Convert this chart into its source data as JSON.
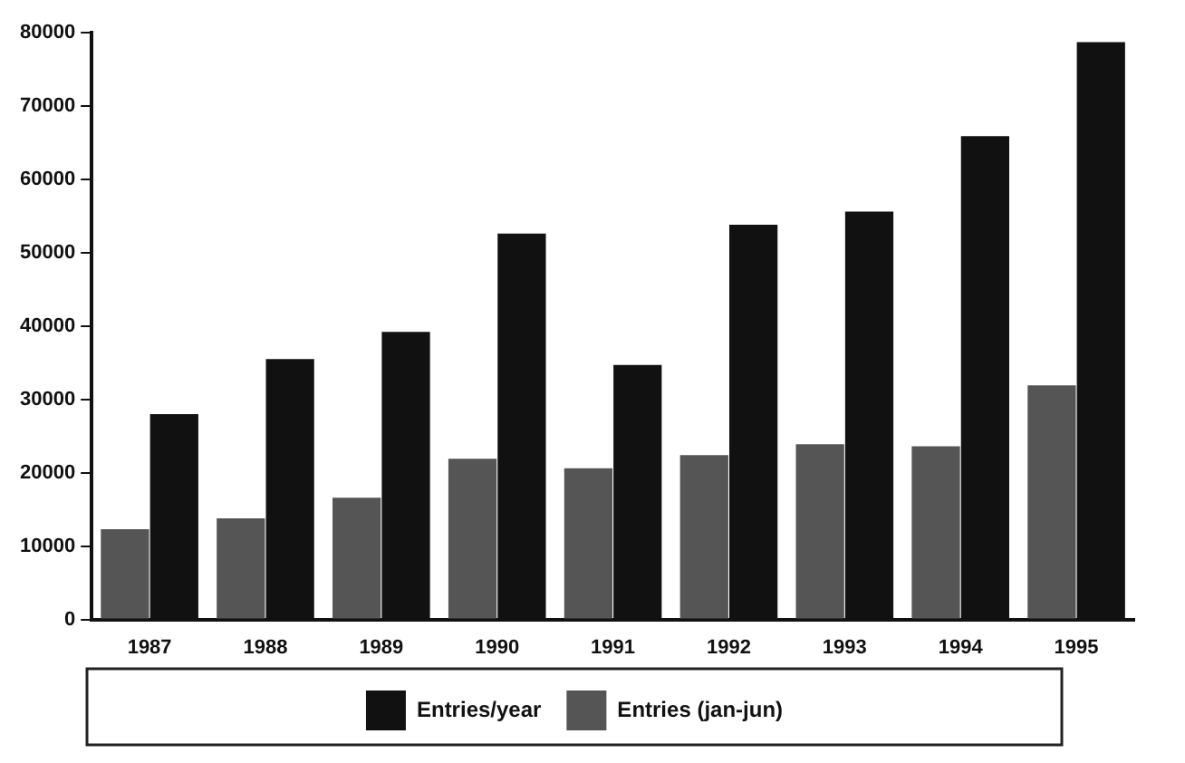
{
  "chart_data": {
    "type": "bar",
    "categories": [
      "1987",
      "1988",
      "1989",
      "1990",
      "1991",
      "1992",
      "1993",
      "1994",
      "1995"
    ],
    "series": [
      {
        "name": "Entries (jan-jun)",
        "color": "#555555",
        "values": [
          12300,
          13800,
          16600,
          21900,
          20600,
          22400,
          23900,
          23600,
          31900
        ]
      },
      {
        "name": "Entries/year",
        "color": "#111111",
        "values": [
          28000,
          35500,
          39200,
          52600,
          34700,
          53800,
          55600,
          65900,
          78700
        ]
      }
    ],
    "ylim": [
      0,
      80000
    ],
    "yticks": [
      0,
      10000,
      20000,
      30000,
      40000,
      50000,
      60000,
      70000,
      80000
    ],
    "grid": false,
    "legend": "bottom"
  }
}
